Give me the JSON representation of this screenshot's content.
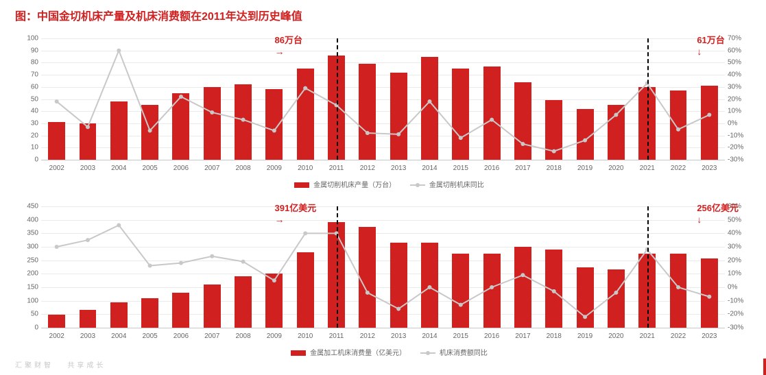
{
  "title": "图：中国金切机床产量及机床消费额在2011年达到历史峰值",
  "footer_left": "汇聚财智",
  "footer_right": "共享成长",
  "colors": {
    "bar": "#d02020",
    "line": "#c8c8c8",
    "grid": "#eaeaea",
    "axis": "#c8c8c8",
    "text": "#666666",
    "title": "#d02020",
    "bg": "#ffffff",
    "callout": "#d02020",
    "dash": "#000000"
  },
  "years": [
    "2002",
    "2003",
    "2004",
    "2005",
    "2006",
    "2007",
    "2008",
    "2009",
    "2010",
    "2011",
    "2012",
    "2013",
    "2014",
    "2015",
    "2016",
    "2017",
    "2018",
    "2019",
    "2020",
    "2021",
    "2022",
    "2023"
  ],
  "chart1": {
    "type": "bar+line",
    "bar_legend": "金属切削机床产量（万台）",
    "line_legend": "金属切削机床同比",
    "ylim": [
      0,
      100
    ],
    "ytick_step": 10,
    "y2lim": [
      -30,
      70
    ],
    "y2tick_step": 10,
    "bars": [
      31,
      30,
      48,
      45,
      55,
      60,
      62,
      58,
      75,
      86,
      79,
      72,
      85,
      75,
      77,
      64,
      49,
      42,
      45,
      60,
      57,
      61
    ],
    "line_yoy": [
      18,
      -3,
      60,
      -6,
      22,
      9,
      3,
      -6,
      29,
      15,
      -8,
      -9,
      18,
      -12,
      3,
      -17,
      -23,
      -14,
      7,
      33,
      -5,
      7
    ],
    "bar_width": 0.55,
    "callouts": [
      {
        "year": "2011",
        "text": "86万台",
        "arrow": "→",
        "side": "left"
      },
      {
        "year": "2023",
        "text": "61万台",
        "arrow": "↓",
        "side": "top"
      }
    ],
    "vlines": [
      "2011",
      "2021"
    ]
  },
  "chart2": {
    "type": "bar+line",
    "bar_legend": "金属加工机床消费量（亿美元）",
    "line_legend": "机床消费额同比",
    "ylim": [
      0,
      450
    ],
    "ytick_step": 50,
    "y2lim": [
      -30,
      60
    ],
    "y2tick_step": 10,
    "bars": [
      48,
      65,
      95,
      110,
      130,
      160,
      190,
      200,
      280,
      391,
      375,
      315,
      315,
      275,
      275,
      300,
      290,
      225,
      215,
      275,
      275,
      256
    ],
    "line_yoy": [
      30,
      35,
      46,
      16,
      18,
      23,
      19,
      5,
      40,
      40,
      -4,
      -16,
      0,
      -13,
      0,
      9,
      -3,
      -22,
      -4,
      28,
      0,
      -7
    ],
    "bar_width": 0.55,
    "callouts": [
      {
        "year": "2011",
        "text": "391亿美元",
        "arrow": "→",
        "side": "left"
      },
      {
        "year": "2023",
        "text": "256亿美元",
        "arrow": "↓",
        "side": "top"
      }
    ],
    "vlines": [
      "2011",
      "2021"
    ]
  }
}
